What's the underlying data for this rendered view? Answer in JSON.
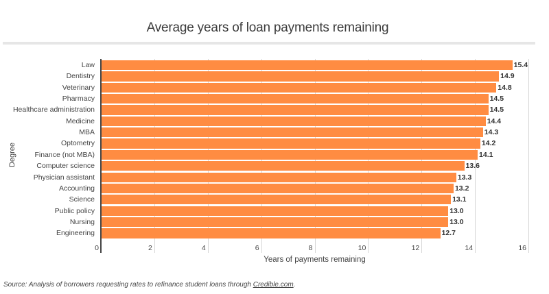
{
  "header": {
    "title": "Average years of loan payments remaining"
  },
  "footer": {
    "source_prefix": "Source: Analysis of borrowers requesting rates to refinance student loans through ",
    "source_link": "Credible.com",
    "source_suffix": "."
  },
  "colors": {
    "bar": "#ff8c42",
    "grid": "#d6d6d6",
    "axis": "#444444"
  },
  "chart_data": {
    "type": "bar",
    "orientation": "horizontal",
    "title": "Average years of loan payments remaining",
    "xlabel": "Years of payments remaining",
    "ylabel": "Degree",
    "xlim": [
      0,
      16
    ],
    "x_ticks": [
      "0",
      "2",
      "4",
      "6",
      "8",
      "10",
      "12",
      "14",
      "16"
    ],
    "grid": true,
    "categories": [
      "Law",
      "Dentistry",
      "Veterinary",
      "Pharmacy",
      "Healthcare administration",
      "Medicine",
      "MBA",
      "Optometry",
      "Finance (not MBA)",
      "Computer science",
      "Physician assistant",
      "Accounting",
      "Science",
      "Public policy",
      "Nursing",
      "Engineering"
    ],
    "values": [
      15.4,
      14.9,
      14.8,
      14.5,
      14.5,
      14.4,
      14.3,
      14.2,
      14.1,
      13.6,
      13.3,
      13.2,
      13.1,
      13.0,
      13.0,
      12.7
    ],
    "value_labels": [
      "15.4",
      "14.9",
      "14.8",
      "14.5",
      "14.5",
      "14.4",
      "14.3",
      "14.2",
      "14.1",
      "13.6",
      "13.3",
      "13.2",
      "13.1",
      "13.0",
      "13.0",
      "12.7"
    ]
  }
}
